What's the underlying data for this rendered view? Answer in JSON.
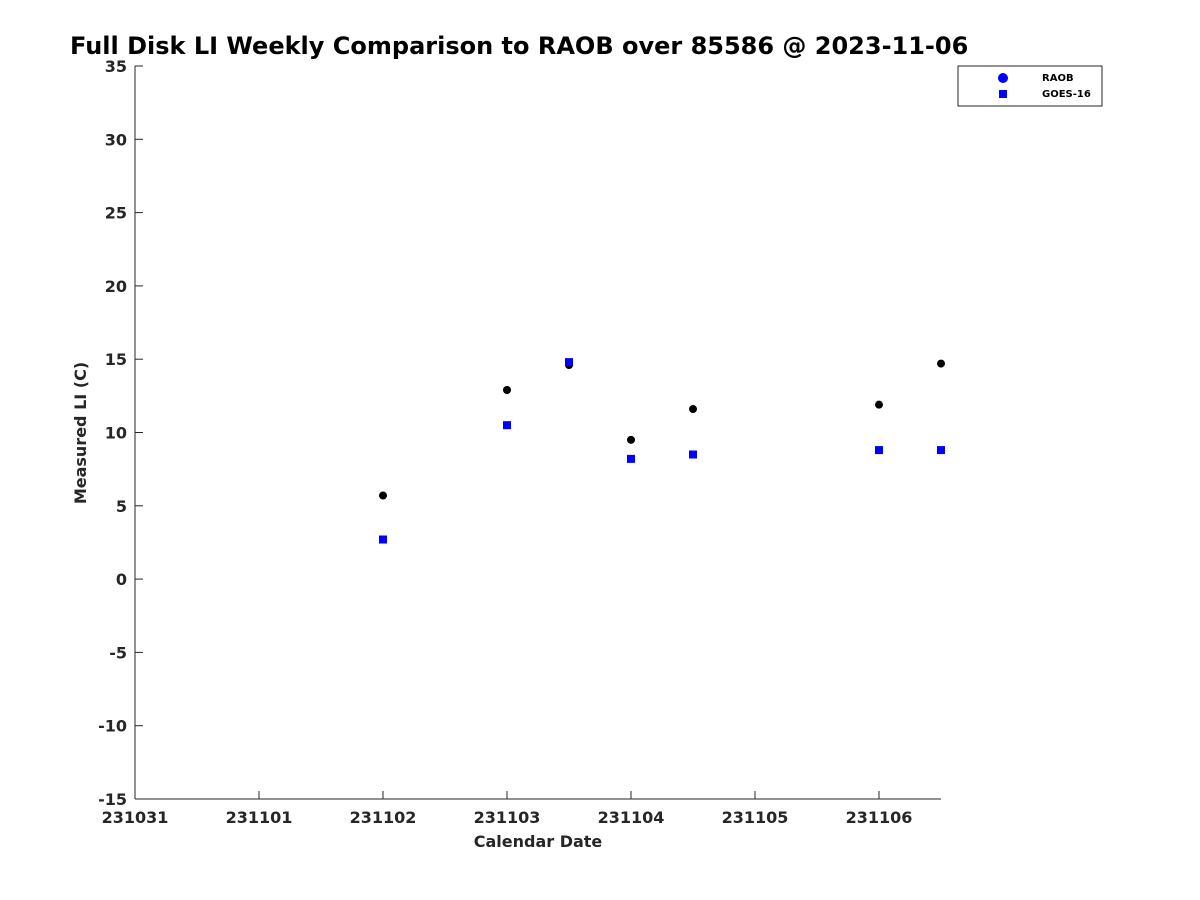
{
  "chart_data": {
    "type": "scatter",
    "title": "Full Disk LI Weekly Comparison to RAOB over 85586 @ 2023-11-06",
    "xlabel": "Calendar Date",
    "ylabel": "Measured LI (C)",
    "x_ticks": [
      "231031",
      "231101",
      "231102",
      "231103",
      "231104",
      "231105",
      "231106"
    ],
    "xlim": [
      "2023-10-31",
      "2023-11-06T12:00"
    ],
    "ylim": [
      -15,
      35
    ],
    "y_ticks": [
      -15,
      -10,
      -5,
      0,
      5,
      10,
      15,
      20,
      25,
      30,
      35
    ],
    "grid": false,
    "legend_position": "top-right",
    "series": [
      {
        "name": "RAOB",
        "marker": "circle",
        "color": "#000000",
        "legend_color": "#0000ff",
        "points": [
          {
            "x": "2023-11-02T00:00",
            "y": 5.7
          },
          {
            "x": "2023-11-03T00:00",
            "y": 12.9
          },
          {
            "x": "2023-11-03T12:00",
            "y": 14.6
          },
          {
            "x": "2023-11-04T00:00",
            "y": 9.5
          },
          {
            "x": "2023-11-04T12:00",
            "y": 11.6
          },
          {
            "x": "2023-11-06T00:00",
            "y": 11.9
          },
          {
            "x": "2023-11-06T12:00",
            "y": 14.7
          }
        ]
      },
      {
        "name": "GOES-16",
        "marker": "square",
        "color": "#0000ff",
        "legend_color": "#0000ff",
        "points": [
          {
            "x": "2023-11-02T00:00",
            "y": 2.7
          },
          {
            "x": "2023-11-03T00:00",
            "y": 10.5
          },
          {
            "x": "2023-11-03T12:00",
            "y": 14.8
          },
          {
            "x": "2023-11-04T00:00",
            "y": 8.2
          },
          {
            "x": "2023-11-04T12:00",
            "y": 8.5
          },
          {
            "x": "2023-11-06T00:00",
            "y": 8.8
          },
          {
            "x": "2023-11-06T12:00",
            "y": 8.8
          }
        ]
      }
    ]
  }
}
